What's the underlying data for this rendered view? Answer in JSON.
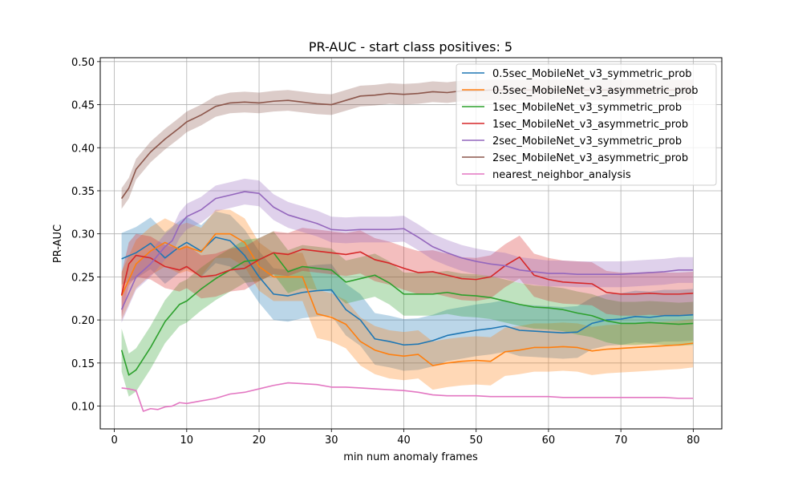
{
  "chart_data": {
    "type": "line",
    "title": "PR-AUC - start class positives: 5",
    "xlabel": "min num anomaly frames",
    "ylabel": "PR-AUC",
    "xlim": [
      -1.95,
      83.95
    ],
    "ylim": [
      0.0735,
      0.5045
    ],
    "xticks": [
      0,
      10,
      20,
      30,
      40,
      50,
      60,
      70,
      80
    ],
    "xtick_labels": [
      "0",
      "10",
      "20",
      "30",
      "40",
      "50",
      "60",
      "70",
      "80"
    ],
    "yticks": [
      0.1,
      0.15,
      0.2,
      0.25,
      0.3,
      0.35,
      0.4,
      0.45,
      0.5
    ],
    "ytick_labels": [
      "0.10",
      "0.15",
      "0.20",
      "0.25",
      "0.30",
      "0.35",
      "0.40",
      "0.45",
      "0.50"
    ],
    "grid": true,
    "legend_position": "upper right",
    "series": [
      {
        "name": "0.5sec_MobileNet_v3_symmetric_prob",
        "color": "#1f77b4",
        "x": [
          1,
          3,
          5,
          7,
          9,
          10,
          12,
          14,
          16,
          18,
          20,
          22,
          24,
          26,
          28,
          30,
          32,
          34,
          36,
          38,
          40,
          42,
          44,
          46,
          48,
          50,
          52,
          54,
          56,
          58,
          60,
          62,
          64,
          66,
          68,
          70,
          72,
          74,
          76,
          78,
          80
        ],
        "y": [
          0.271,
          0.278,
          0.289,
          0.272,
          0.285,
          0.29,
          0.28,
          0.296,
          0.292,
          0.275,
          0.25,
          0.23,
          0.228,
          0.232,
          0.234,
          0.235,
          0.212,
          0.2,
          0.178,
          0.175,
          0.171,
          0.172,
          0.176,
          0.182,
          0.185,
          0.188,
          0.19,
          0.193,
          0.188,
          0.187,
          0.186,
          0.185,
          0.186,
          0.196,
          0.2,
          0.201,
          0.204,
          0.203,
          0.205,
          0.205,
          0.206
        ],
        "band": 0.03
      },
      {
        "name": "0.5sec_MobileNet_v3_asymmetric_prob",
        "color": "#ff7f0e",
        "x": [
          1,
          3,
          5,
          7,
          9,
          10,
          12,
          14,
          16,
          18,
          20,
          22,
          24,
          26,
          28,
          30,
          32,
          34,
          36,
          38,
          40,
          42,
          44,
          46,
          48,
          50,
          52,
          54,
          56,
          58,
          60,
          62,
          64,
          66,
          68,
          70,
          72,
          74,
          76,
          78,
          80
        ],
        "y": [
          0.228,
          0.265,
          0.28,
          0.29,
          0.282,
          0.285,
          0.279,
          0.3,
          0.3,
          0.29,
          0.262,
          0.25,
          0.25,
          0.25,
          0.207,
          0.203,
          0.195,
          0.175,
          0.165,
          0.16,
          0.158,
          0.16,
          0.147,
          0.15,
          0.152,
          0.153,
          0.152,
          0.163,
          0.165,
          0.168,
          0.168,
          0.169,
          0.168,
          0.164,
          0.166,
          0.167,
          0.168,
          0.169,
          0.17,
          0.171,
          0.173
        ],
        "band": 0.028
      },
      {
        "name": "1sec_MobileNet_v3_symmetric_prob",
        "color": "#2ca02c",
        "x": [
          1,
          2,
          3,
          5,
          7,
          9,
          10,
          12,
          14,
          16,
          18,
          20,
          22,
          24,
          26,
          28,
          30,
          32,
          34,
          36,
          38,
          40,
          42,
          44,
          46,
          48,
          50,
          52,
          54,
          56,
          58,
          60,
          62,
          64,
          66,
          68,
          70,
          72,
          74,
          76,
          78,
          80
        ],
        "y": [
          0.165,
          0.136,
          0.142,
          0.168,
          0.198,
          0.218,
          0.222,
          0.236,
          0.248,
          0.258,
          0.268,
          0.27,
          0.278,
          0.256,
          0.262,
          0.26,
          0.258,
          0.244,
          0.248,
          0.252,
          0.243,
          0.23,
          0.23,
          0.23,
          0.232,
          0.229,
          0.228,
          0.226,
          0.222,
          0.218,
          0.215,
          0.214,
          0.212,
          0.208,
          0.205,
          0.199,
          0.196,
          0.196,
          0.197,
          0.196,
          0.195,
          0.196
        ],
        "band": 0.025
      },
      {
        "name": "1sec_MobileNet_v3_asymmetric_prob",
        "color": "#d62728",
        "x": [
          1,
          2,
          3,
          5,
          7,
          9,
          10,
          12,
          14,
          16,
          18,
          20,
          22,
          24,
          26,
          28,
          30,
          32,
          34,
          36,
          38,
          40,
          42,
          44,
          46,
          48,
          50,
          52,
          54,
          56,
          58,
          60,
          62,
          64,
          66,
          68,
          70,
          72,
          74,
          76,
          78,
          80
        ],
        "y": [
          0.229,
          0.265,
          0.275,
          0.272,
          0.262,
          0.258,
          0.262,
          0.25,
          0.252,
          0.258,
          0.26,
          0.27,
          0.278,
          0.276,
          0.282,
          0.28,
          0.278,
          0.276,
          0.279,
          0.27,
          0.266,
          0.26,
          0.255,
          0.256,
          0.252,
          0.248,
          0.247,
          0.25,
          0.263,
          0.273,
          0.252,
          0.247,
          0.244,
          0.243,
          0.242,
          0.232,
          0.23,
          0.23,
          0.231,
          0.23,
          0.23,
          0.231
        ],
        "band": 0.025
      },
      {
        "name": "2sec_MobileNet_v3_symmetric_prob",
        "color": "#9467bd",
        "x": [
          1,
          3,
          5,
          7,
          8,
          9,
          10,
          12,
          14,
          16,
          18,
          20,
          22,
          24,
          26,
          28,
          30,
          32,
          34,
          36,
          38,
          40,
          42,
          44,
          46,
          48,
          50,
          52,
          54,
          56,
          58,
          60,
          62,
          64,
          66,
          68,
          70,
          72,
          74,
          76,
          78,
          80
        ],
        "y": [
          0.212,
          0.25,
          0.265,
          0.285,
          0.292,
          0.31,
          0.32,
          0.328,
          0.341,
          0.345,
          0.349,
          0.347,
          0.331,
          0.322,
          0.317,
          0.312,
          0.305,
          0.304,
          0.305,
          0.305,
          0.305,
          0.306,
          0.296,
          0.285,
          0.278,
          0.272,
          0.268,
          0.265,
          0.263,
          0.258,
          0.256,
          0.254,
          0.254,
          0.253,
          0.253,
          0.253,
          0.253,
          0.254,
          0.255,
          0.256,
          0.258,
          0.258
        ],
        "band": 0.015
      },
      {
        "name": "2sec_MobileNet_v3_asymmetric_prob",
        "color": "#8c564b",
        "x": [
          1,
          2,
          3,
          5,
          7,
          9,
          10,
          12,
          14,
          16,
          18,
          20,
          22,
          24,
          26,
          28,
          30,
          32,
          34,
          36,
          38,
          40,
          42,
          44,
          46,
          48,
          50,
          52,
          54,
          56,
          58,
          60,
          62,
          64,
          66,
          68,
          70,
          72,
          74,
          76,
          78,
          80
        ],
        "y": [
          0.341,
          0.353,
          0.375,
          0.395,
          0.41,
          0.423,
          0.43,
          0.438,
          0.448,
          0.452,
          0.453,
          0.452,
          0.454,
          0.455,
          0.453,
          0.451,
          0.45,
          0.455,
          0.46,
          0.461,
          0.463,
          0.462,
          0.463,
          0.465,
          0.464,
          0.466,
          0.466,
          0.467,
          0.467,
          0.467,
          0.467,
          0.467,
          0.467,
          0.467,
          0.467,
          0.467,
          0.467,
          0.467,
          0.467,
          0.467,
          0.467,
          0.467
        ],
        "band": 0.012
      },
      {
        "name": "nearest_neighbor_analysis",
        "color": "#e377c2",
        "x": [
          1,
          2,
          3,
          4,
          5,
          6,
          7,
          8,
          9,
          10,
          12,
          14,
          16,
          18,
          20,
          22,
          24,
          26,
          28,
          30,
          32,
          34,
          36,
          38,
          40,
          42,
          44,
          46,
          48,
          50,
          52,
          54,
          56,
          58,
          60,
          62,
          64,
          66,
          68,
          70,
          72,
          74,
          76,
          78,
          80
        ],
        "y": [
          0.121,
          0.12,
          0.118,
          0.094,
          0.097,
          0.096,
          0.099,
          0.1,
          0.104,
          0.103,
          0.106,
          0.109,
          0.114,
          0.116,
          0.12,
          0.124,
          0.127,
          0.126,
          0.125,
          0.122,
          0.122,
          0.121,
          0.12,
          0.119,
          0.118,
          0.116,
          0.113,
          0.112,
          0.112,
          0.112,
          0.111,
          0.111,
          0.111,
          0.111,
          0.111,
          0.11,
          0.11,
          0.11,
          0.11,
          0.11,
          0.11,
          0.11,
          0.11,
          0.109,
          0.109
        ],
        "band": 0
      }
    ]
  }
}
